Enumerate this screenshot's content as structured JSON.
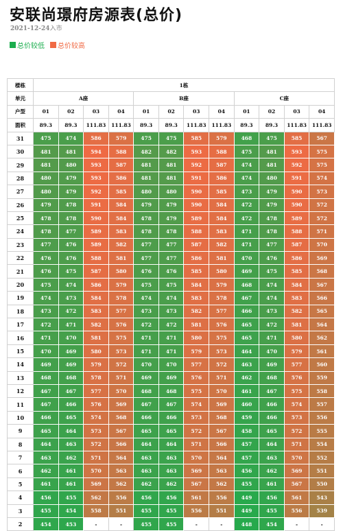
{
  "title": "安联尚璟府房源表(总价)",
  "date": "2021-12-24",
  "date_suffix": "入市",
  "legend": [
    {
      "label": "总价较低",
      "color": "#1aad4d"
    },
    {
      "label": "总价较高",
      "color": "#f06a44"
    }
  ],
  "header": {
    "building_label": "楼栋",
    "building": "1栋",
    "unit_label": "单元",
    "units": [
      "A座",
      "B座",
      "C座"
    ],
    "type_label": "户型",
    "types": [
      "01",
      "02",
      "03",
      "04",
      "01",
      "02",
      "03",
      "04",
      "01",
      "02",
      "03",
      "04"
    ],
    "area_label": "面积",
    "areas": [
      "89.3",
      "89.3",
      "111.83",
      "111.83",
      "89.3",
      "89.3",
      "111.83",
      "111.83",
      "89.3",
      "89.3",
      "111.83",
      "111.83"
    ]
  },
  "scale": {
    "min": 439,
    "max": 595,
    "low": "#1aad4d",
    "high": "#f06a44"
  },
  "floors": [
    {
      "floor": "31",
      "values": [
        "475",
        "474",
        "586",
        "579",
        "475",
        "475",
        "585",
        "579",
        "468",
        "475",
        "585",
        "567"
      ]
    },
    {
      "floor": "30",
      "values": [
        "481",
        "481",
        "594",
        "588",
        "482",
        "482",
        "593",
        "588",
        "475",
        "481",
        "593",
        "575"
      ]
    },
    {
      "floor": "29",
      "values": [
        "481",
        "480",
        "593",
        "587",
        "481",
        "481",
        "592",
        "587",
        "474",
        "481",
        "592",
        "575"
      ]
    },
    {
      "floor": "28",
      "values": [
        "480",
        "479",
        "593",
        "586",
        "481",
        "481",
        "591",
        "586",
        "474",
        "480",
        "591",
        "574"
      ]
    },
    {
      "floor": "27",
      "values": [
        "480",
        "479",
        "592",
        "585",
        "480",
        "480",
        "590",
        "585",
        "473",
        "479",
        "590",
        "573"
      ]
    },
    {
      "floor": "26",
      "values": [
        "479",
        "478",
        "591",
        "584",
        "479",
        "479",
        "590",
        "584",
        "472",
        "479",
        "590",
        "572"
      ]
    },
    {
      "floor": "25",
      "values": [
        "478",
        "478",
        "590",
        "584",
        "478",
        "479",
        "589",
        "584",
        "472",
        "478",
        "589",
        "572"
      ]
    },
    {
      "floor": "24",
      "values": [
        "478",
        "477",
        "589",
        "583",
        "478",
        "478",
        "588",
        "583",
        "471",
        "478",
        "588",
        "571"
      ]
    },
    {
      "floor": "23",
      "values": [
        "477",
        "476",
        "589",
        "582",
        "477",
        "477",
        "587",
        "582",
        "471",
        "477",
        "587",
        "570"
      ]
    },
    {
      "floor": "22",
      "values": [
        "476",
        "476",
        "588",
        "581",
        "477",
        "477",
        "586",
        "581",
        "470",
        "476",
        "586",
        "569"
      ]
    },
    {
      "floor": "21",
      "values": [
        "476",
        "475",
        "587",
        "580",
        "476",
        "476",
        "585",
        "580",
        "469",
        "475",
        "585",
        "568"
      ]
    },
    {
      "floor": "20",
      "values": [
        "475",
        "474",
        "586",
        "579",
        "475",
        "475",
        "584",
        "579",
        "468",
        "474",
        "584",
        "567"
      ]
    },
    {
      "floor": "19",
      "values": [
        "474",
        "473",
        "584",
        "578",
        "474",
        "474",
        "583",
        "578",
        "467",
        "474",
        "583",
        "566"
      ]
    },
    {
      "floor": "18",
      "values": [
        "473",
        "472",
        "583",
        "577",
        "473",
        "473",
        "582",
        "577",
        "466",
        "473",
        "582",
        "565"
      ]
    },
    {
      "floor": "17",
      "values": [
        "472",
        "471",
        "582",
        "576",
        "472",
        "472",
        "581",
        "576",
        "465",
        "472",
        "581",
        "564"
      ]
    },
    {
      "floor": "16",
      "values": [
        "471",
        "470",
        "581",
        "575",
        "471",
        "471",
        "580",
        "575",
        "465",
        "471",
        "580",
        "562"
      ]
    },
    {
      "floor": "15",
      "values": [
        "470",
        "469",
        "580",
        "573",
        "471",
        "471",
        "579",
        "573",
        "464",
        "470",
        "579",
        "561"
      ]
    },
    {
      "floor": "14",
      "values": [
        "469",
        "469",
        "579",
        "572",
        "470",
        "470",
        "577",
        "572",
        "463",
        "469",
        "577",
        "560"
      ]
    },
    {
      "floor": "13",
      "values": [
        "468",
        "468",
        "578",
        "571",
        "469",
        "469",
        "576",
        "571",
        "462",
        "468",
        "576",
        "559"
      ]
    },
    {
      "floor": "12",
      "values": [
        "467",
        "467",
        "577",
        "570",
        "468",
        "468",
        "575",
        "570",
        "461",
        "467",
        "575",
        "558"
      ]
    },
    {
      "floor": "11",
      "values": [
        "467",
        "466",
        "576",
        "569",
        "467",
        "467",
        "574",
        "569",
        "460",
        "466",
        "574",
        "557"
      ]
    },
    {
      "floor": "10",
      "values": [
        "466",
        "465",
        "574",
        "568",
        "466",
        "466",
        "573",
        "568",
        "459",
        "466",
        "573",
        "556"
      ]
    },
    {
      "floor": "9",
      "values": [
        "465",
        "464",
        "573",
        "567",
        "465",
        "465",
        "572",
        "567",
        "458",
        "465",
        "572",
        "555"
      ]
    },
    {
      "floor": "8",
      "values": [
        "464",
        "463",
        "572",
        "566",
        "464",
        "464",
        "571",
        "566",
        "457",
        "464",
        "571",
        "554"
      ]
    },
    {
      "floor": "7",
      "values": [
        "463",
        "462",
        "571",
        "564",
        "463",
        "463",
        "570",
        "564",
        "457",
        "463",
        "570",
        "552"
      ]
    },
    {
      "floor": "6",
      "values": [
        "462",
        "461",
        "570",
        "563",
        "463",
        "463",
        "569",
        "563",
        "456",
        "462",
        "569",
        "551"
      ]
    },
    {
      "floor": "5",
      "values": [
        "461",
        "461",
        "569",
        "562",
        "462",
        "462",
        "567",
        "562",
        "455",
        "461",
        "567",
        "550"
      ]
    },
    {
      "floor": "4",
      "values": [
        "456",
        "455",
        "562",
        "556",
        "456",
        "456",
        "561",
        "556",
        "449",
        "456",
        "561",
        "543"
      ]
    },
    {
      "floor": "3",
      "values": [
        "455",
        "454",
        "558",
        "551",
        "455",
        "455",
        "556",
        "551",
        "449",
        "455",
        "556",
        "539"
      ]
    },
    {
      "floor": "2",
      "values": [
        "454",
        "453",
        "-",
        "-",
        "455",
        "455",
        "-",
        "-",
        "448",
        "454",
        "-",
        "-"
      ]
    }
  ]
}
